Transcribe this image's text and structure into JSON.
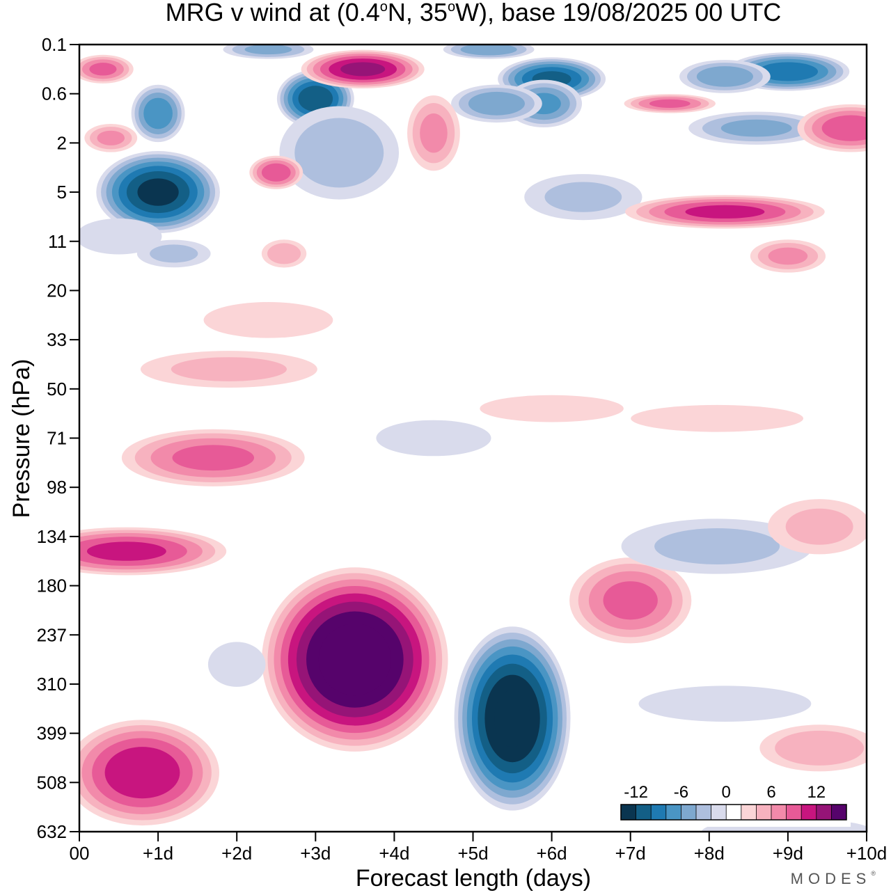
{
  "chart_data": {
    "type": "heatmap",
    "title_parts": {
      "prefix": "MRG v wind at (0.4",
      "deg1": "o",
      "mid": "N, 35",
      "deg2": "o",
      "suffix": "W),  base 19/08/2025  00 UTC"
    },
    "xlabel": "Forecast length (days)",
    "ylabel": "Pressure (hPa)",
    "xlim": [
      0,
      10
    ],
    "x_ticks": [
      "00",
      "+1d",
      "+2d",
      "+3d",
      "+4d",
      "+5d",
      "+6d",
      "+7d",
      "+8d",
      "+9d",
      "+10d"
    ],
    "y_ticks": [
      "0.1",
      "0.6",
      "2",
      "5",
      "11",
      "20",
      "33",
      "50",
      "71",
      "98",
      "134",
      "180",
      "237",
      "310",
      "399",
      "508",
      "632"
    ],
    "colorbar": {
      "levels": [
        -14,
        -12,
        -10,
        -8,
        -6,
        -4,
        -2,
        0,
        2,
        4,
        6,
        8,
        10,
        12,
        14
      ],
      "tick_labels": [
        "-12",
        "-6",
        "0",
        "6",
        "12"
      ],
      "colors": [
        "#0a3550",
        "#135f86",
        "#1f7ab2",
        "#4a95c4",
        "#7ea8cf",
        "#aebfde",
        "#d9dbec",
        "#ffffff",
        "#fbd5d7",
        "#f7b2bf",
        "#f28aaa",
        "#e75a97",
        "#c8157f",
        "#961477",
        "#56036b"
      ]
    },
    "features": [
      {
        "name": "upper-blob-1",
        "x": 1.0,
        "level": 3.0,
        "v": -14,
        "rx": 0.8,
        "ry": 0.85
      },
      {
        "name": "upper-blob-2",
        "x": 1.0,
        "level": 1.4,
        "v": -9,
        "rx": 0.35,
        "ry": 0.6
      },
      {
        "name": "upper-blob-3",
        "x": 3.0,
        "level": 1.1,
        "v": -13,
        "rx": 0.5,
        "ry": 0.6
      },
      {
        "name": "upper-blob-4",
        "x": 3.3,
        "level": 2.2,
        "v": -5,
        "rx": 0.8,
        "ry": 1.0
      },
      {
        "name": "upper-blob-5",
        "x": 6.0,
        "level": 0.7,
        "v": -12,
        "rx": 0.7,
        "ry": 0.45
      },
      {
        "name": "upper-blob-6",
        "x": 5.9,
        "level": 1.2,
        "v": -8,
        "rx": 0.5,
        "ry": 0.5
      },
      {
        "name": "upper-blob-7",
        "x": 5.3,
        "level": 1.2,
        "v": -7,
        "rx": 0.6,
        "ry": 0.4
      },
      {
        "name": "upper-blob-8",
        "x": 9.0,
        "level": 0.55,
        "v": -11,
        "rx": 0.8,
        "ry": 0.4
      },
      {
        "name": "upper-blob-9",
        "x": 8.2,
        "level": 0.65,
        "v": -7,
        "rx": 0.6,
        "ry": 0.35
      },
      {
        "name": "upper-blob-10",
        "x": 8.6,
        "level": 1.7,
        "v": -6,
        "rx": 0.9,
        "ry": 0.35
      },
      {
        "name": "upper-blob-11",
        "x": 6.4,
        "level": 3.1,
        "v": -4,
        "rx": 0.8,
        "ry": 0.5
      },
      {
        "name": "upper-blob-12",
        "x": 2.4,
        "level": 0.1,
        "v": -6,
        "rx": 0.6,
        "ry": 0.2
      },
      {
        "name": "upper-blob-13",
        "x": 5.2,
        "level": 0.1,
        "v": -7,
        "rx": 0.6,
        "ry": 0.2
      },
      {
        "name": "upper-blob-14",
        "x": 3.6,
        "level": 0.5,
        "v": 12,
        "rx": 0.8,
        "ry": 0.4
      },
      {
        "name": "upper-blob-15",
        "x": 0.3,
        "level": 0.5,
        "v": 8,
        "rx": 0.4,
        "ry": 0.3
      },
      {
        "name": "upper-blob-16",
        "x": 2.5,
        "level": 2.6,
        "v": 9,
        "rx": 0.35,
        "ry": 0.35
      },
      {
        "name": "upper-blob-17",
        "x": 4.5,
        "level": 1.8,
        "v": 6,
        "rx": 0.35,
        "ry": 0.8
      },
      {
        "name": "upper-blob-18",
        "x": 9.8,
        "level": 1.7,
        "v": 9,
        "rx": 0.7,
        "ry": 0.5
      },
      {
        "name": "upper-blob-19",
        "x": 7.5,
        "level": 1.2,
        "v": 8,
        "rx": 0.6,
        "ry": 0.2
      },
      {
        "name": "upper-blob-20",
        "x": 8.2,
        "level": 3.4,
        "v": 10,
        "rx": 1.3,
        "ry": 0.35
      },
      {
        "name": "upper-blob-21",
        "x": 0.4,
        "level": 1.9,
        "v": 6,
        "rx": 0.35,
        "ry": 0.3
      },
      {
        "name": "upper-blob-22",
        "x": 0.5,
        "level": 3.9,
        "v": -3,
        "rx": 0.6,
        "ry": 0.4
      },
      {
        "name": "upper-blob-23",
        "x": 1.2,
        "level": 4.25,
        "v": -4,
        "rx": 0.5,
        "ry": 0.3
      },
      {
        "name": "upper-blob-24",
        "x": 2.6,
        "level": 4.25,
        "v": 5,
        "rx": 0.3,
        "ry": 0.3
      },
      {
        "name": "upper-blob-25",
        "x": 9.0,
        "level": 4.3,
        "v": 6,
        "rx": 0.5,
        "ry": 0.35
      },
      {
        "name": "lower-blob-1",
        "x": 3.5,
        "level": 12.5,
        "v": 17,
        "rx": 1.2,
        "ry": 1.9
      },
      {
        "name": "lower-blob-2",
        "x": 5.5,
        "level": 13.7,
        "v": -16,
        "rx": 0.75,
        "ry": 1.9
      },
      {
        "name": "lower-blob-3",
        "x": 0.8,
        "level": 14.8,
        "v": 11,
        "rx": 1.0,
        "ry": 1.1
      },
      {
        "name": "lower-blob-4",
        "x": 0.6,
        "level": 10.3,
        "v": 10,
        "rx": 1.3,
        "ry": 0.5
      },
      {
        "name": "lower-blob-5",
        "x": 1.7,
        "level": 8.4,
        "v": 8,
        "rx": 1.2,
        "ry": 0.6
      },
      {
        "name": "lower-blob-6",
        "x": 7.0,
        "level": 11.3,
        "v": 8,
        "rx": 0.8,
        "ry": 0.9
      },
      {
        "name": "lower-blob-7",
        "x": 8.1,
        "level": 10.2,
        "v": -4,
        "rx": 1.3,
        "ry": 0.6
      },
      {
        "name": "lower-blob-8",
        "x": 9.4,
        "level": 14.3,
        "v": 5,
        "rx": 0.8,
        "ry": 0.5
      },
      {
        "name": "lower-blob-9",
        "x": 9.4,
        "level": 9.8,
        "v": 4,
        "rx": 0.7,
        "ry": 0.6
      },
      {
        "name": "lower-blob-10",
        "x": 8.2,
        "level": 13.4,
        "v": -3,
        "rx": 1.2,
        "ry": 0.4
      },
      {
        "name": "lower-blob-11",
        "x": 4.5,
        "level": 8.0,
        "v": -3,
        "rx": 0.8,
        "ry": 0.4
      },
      {
        "name": "lower-blob-12",
        "x": 8.1,
        "level": 7.6,
        "v": 3,
        "rx": 1.2,
        "ry": 0.3
      },
      {
        "name": "lower-blob-13",
        "x": 1.9,
        "level": 6.6,
        "v": 4,
        "rx": 1.2,
        "ry": 0.4
      },
      {
        "name": "lower-blob-14",
        "x": 6.0,
        "level": 7.4,
        "v": 3,
        "rx": 1.0,
        "ry": 0.3
      },
      {
        "name": "lower-blob-15",
        "x": 9.0,
        "level": 16.0,
        "v": -3,
        "rx": 1.2,
        "ry": 0.3
      },
      {
        "name": "lower-blob-16",
        "x": 2.0,
        "level": 12.6,
        "v": -3,
        "rx": 0.4,
        "ry": 0.5
      },
      {
        "name": "lower-blob-17",
        "x": 2.4,
        "level": 5.6,
        "v": 3,
        "rx": 0.9,
        "ry": 0.4
      }
    ]
  },
  "branding": {
    "logo": "MODES",
    "logo_mark": "®"
  }
}
